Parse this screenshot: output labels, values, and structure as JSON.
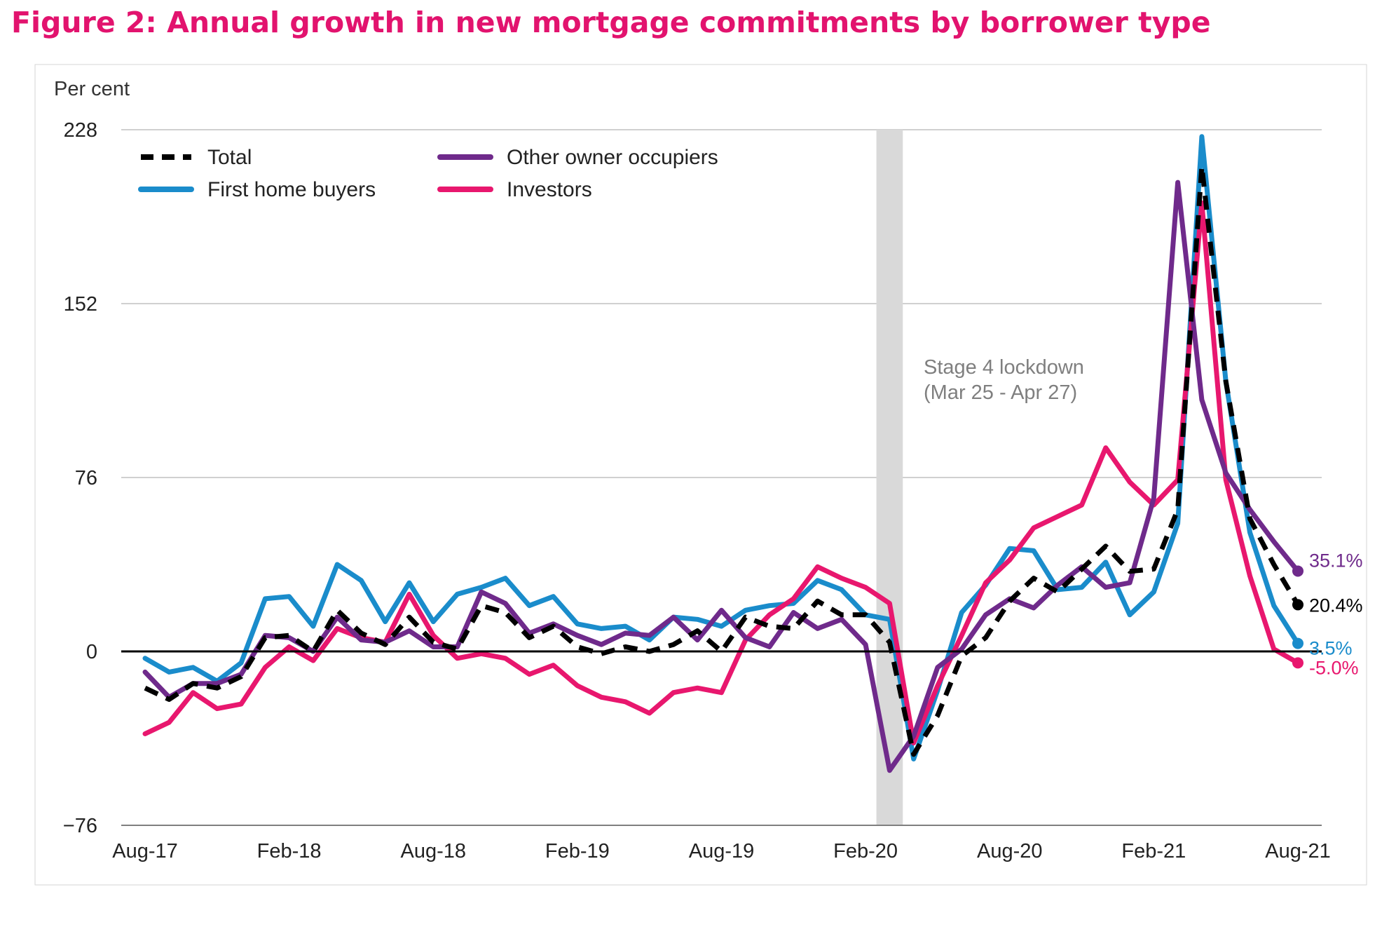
{
  "figure": {
    "title": "Figure 2:  Annual growth in new mortgage commitments by borrower type"
  },
  "chart_data": {
    "type": "line",
    "ylabel": "Per cent",
    "ylim": [
      -76,
      228
    ],
    "yticks": [
      228,
      152,
      76,
      0,
      -76
    ],
    "ytick_labels": [
      "228",
      "152",
      "76",
      "0",
      "−76"
    ],
    "x_labels": [
      "Aug-17",
      "Feb-18",
      "Aug-18",
      "Feb-19",
      "Aug-19",
      "Feb-20",
      "Aug-20",
      "Feb-21",
      "Aug-21"
    ],
    "x": [
      "Aug-17",
      "Sep-17",
      "Oct-17",
      "Nov-17",
      "Dec-17",
      "Jan-18",
      "Feb-18",
      "Mar-18",
      "Apr-18",
      "May-18",
      "Jun-18",
      "Jul-18",
      "Aug-18",
      "Sep-18",
      "Oct-18",
      "Nov-18",
      "Dec-18",
      "Jan-19",
      "Feb-19",
      "Mar-19",
      "Apr-19",
      "May-19",
      "Jun-19",
      "Jul-19",
      "Aug-19",
      "Sep-19",
      "Oct-19",
      "Nov-19",
      "Dec-19",
      "Jan-20",
      "Feb-20",
      "Mar-20",
      "Apr-20",
      "May-20",
      "Jun-20",
      "Jul-20",
      "Aug-20",
      "Sep-20",
      "Oct-20",
      "Nov-20",
      "Dec-20",
      "Jan-21",
      "Feb-21",
      "Mar-21",
      "Apr-21",
      "May-21",
      "Jun-21",
      "Jul-21",
      "Aug-21"
    ],
    "grid": true,
    "legend_position": "top-left",
    "series": [
      {
        "name": "Total",
        "color": "#000000",
        "dashed": true,
        "end_label": "20.4%",
        "values": [
          -16,
          -21,
          -14,
          -16,
          -11,
          6,
          7,
          0,
          18,
          8,
          3,
          15,
          4,
          1,
          20,
          17,
          6,
          11,
          2,
          -1,
          2,
          0,
          3,
          9,
          0,
          15,
          11,
          10,
          22,
          16,
          16,
          4,
          -45,
          -28,
          -2,
          6,
          22,
          32,
          26,
          36,
          46,
          35,
          36,
          62,
          212,
          118,
          58,
          38,
          20.4
        ]
      },
      {
        "name": "First home buyers",
        "color": "#1a8ccb",
        "dashed": false,
        "end_label": "3.5%",
        "values": [
          -3,
          -9,
          -7,
          -13,
          -5,
          23,
          24,
          11,
          38,
          31,
          13,
          30,
          13,
          25,
          28,
          32,
          20,
          24,
          12,
          10,
          11,
          5,
          15,
          14,
          11,
          18,
          20,
          21,
          31,
          27,
          16,
          14,
          -47,
          -17,
          17,
          29,
          45,
          44,
          27,
          28,
          39,
          16,
          26,
          56,
          225,
          118,
          52,
          20,
          3.5
        ]
      },
      {
        "name": "Other owner occupiers",
        "color": "#6f2a8b",
        "dashed": false,
        "end_label": "35.1%",
        "values": [
          -9,
          -20,
          -14,
          -14,
          -10,
          7,
          6,
          0,
          15,
          5,
          4,
          9,
          2,
          2,
          26,
          21,
          8,
          12,
          7,
          3,
          8,
          7,
          15,
          5,
          18,
          6,
          2,
          17,
          10,
          14,
          3,
          -52,
          -37,
          -7,
          1,
          16,
          23,
          19,
          29,
          37,
          28,
          30,
          67,
          205,
          110,
          78,
          62,
          48,
          35.1
        ]
      },
      {
        "name": "Investors",
        "color": "#e8176e",
        "dashed": false,
        "end_label": "-5.0%",
        "values": [
          -36,
          -31,
          -18,
          -25,
          -23,
          -7,
          2,
          -4,
          10,
          6,
          4,
          25,
          7,
          -3,
          -1,
          -3,
          -10,
          -6,
          -15,
          -20,
          -22,
          -27,
          -18,
          -16,
          -18,
          5,
          16,
          23,
          37,
          32,
          28,
          21,
          -40,
          -15,
          7,
          30,
          40,
          54,
          59,
          64,
          89,
          74,
          64,
          75,
          196,
          75,
          33,
          1,
          -5.0
        ]
      }
    ],
    "annotations": [
      {
        "text_line1": "Stage 4 lockdown",
        "text_line2": "(Mar 25 - Apr 27)",
        "shaded_period": [
          "Mar-20",
          "Apr-20"
        ]
      }
    ]
  }
}
